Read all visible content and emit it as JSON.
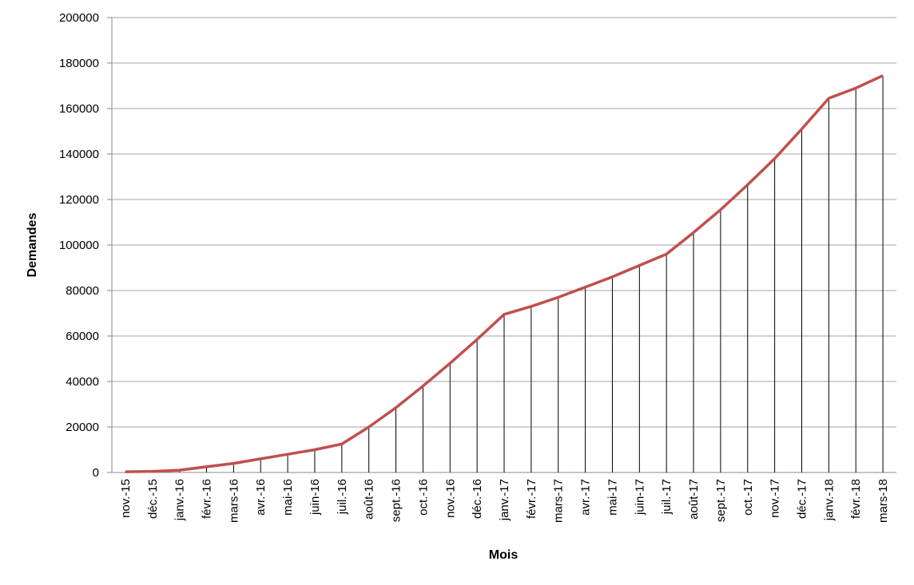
{
  "chart_data": {
    "type": "line",
    "x_label": "Mois",
    "y_label": "Demandes",
    "categories": [
      "nov.-15",
      "déc.-15",
      "janv.-16",
      "févr.-16",
      "mars-16",
      "avr.-16",
      "mai-16",
      "juin-16",
      "juil.-16",
      "août-16",
      "sept.-16",
      "oct.-16",
      "nov.-16",
      "déc.-16",
      "janv.-17",
      "févr.-17",
      "mars-17",
      "avr.-17",
      "mai-17",
      "juin-17",
      "juil.-17",
      "août-17",
      "sept.-17",
      "oct.-17",
      "nov.-17",
      "déc.-17",
      "janv.-18",
      "févr.-18",
      "mars-18"
    ],
    "values": [
      300,
      500,
      1000,
      2500,
      4000,
      6000,
      8000,
      10000,
      12500,
      20000,
      28500,
      38000,
      48000,
      58500,
      69500,
      73000,
      77000,
      81500,
      86000,
      91000,
      96000,
      105500,
      115500,
      126500,
      138000,
      151000,
      164500,
      169000,
      174500
    ],
    "color": "#c0504d",
    "ylim": [
      0,
      200000
    ],
    "yticks": [
      0,
      20000,
      40000,
      60000,
      80000,
      100000,
      120000,
      140000,
      160000,
      180000,
      200000
    ],
    "grid": true,
    "drop_lines": true
  }
}
